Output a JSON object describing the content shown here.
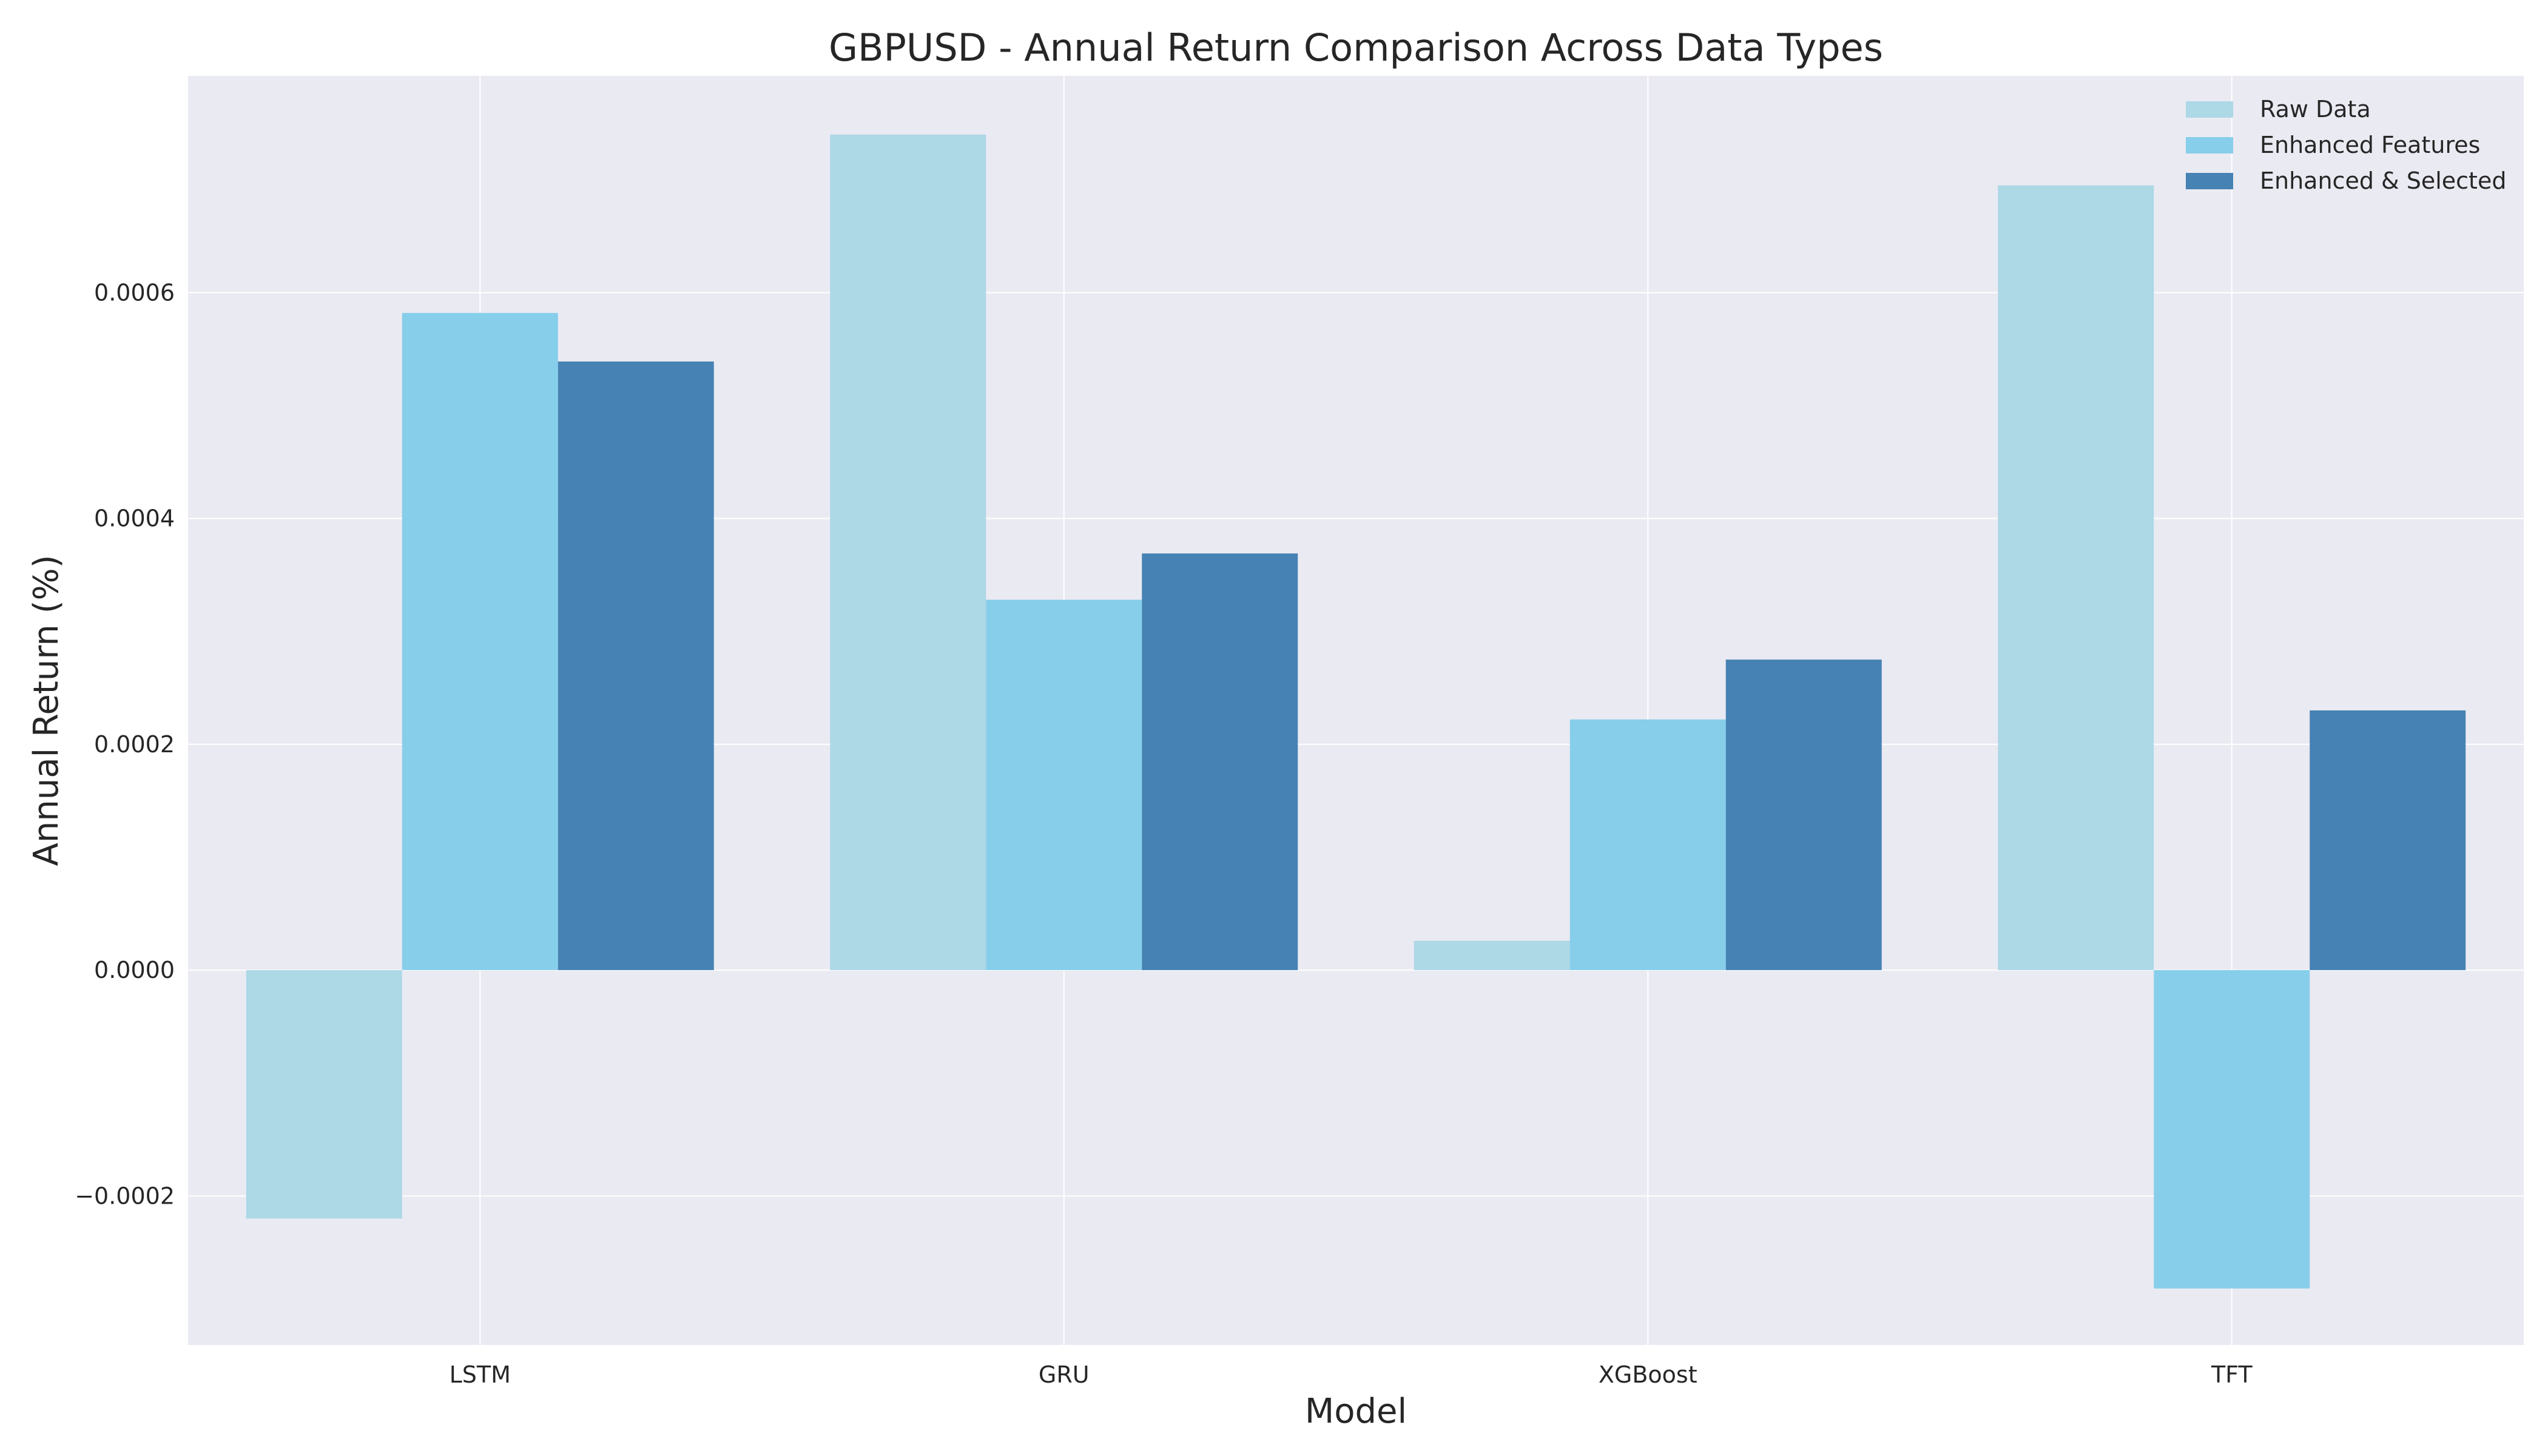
{
  "chart_data": {
    "type": "bar",
    "title": "GBPUSD - Annual Return Comparison Across Data Types",
    "xlabel": "Model",
    "ylabel": "Annual Return (%)",
    "categories": [
      "LSTM",
      "GRU",
      "XGBoost",
      "TFT"
    ],
    "series": [
      {
        "name": "Raw Data",
        "color": "#add8e6",
        "values": [
          -0.00022,
          0.00074,
          2.6e-05,
          0.000695
        ]
      },
      {
        "name": "Enhanced Features",
        "color": "#87ceeb",
        "values": [
          0.000582,
          0.000328,
          0.000222,
          -0.000282
        ]
      },
      {
        "name": "Enhanced & Selected",
        "color": "#4682b4",
        "values": [
          0.000539,
          0.000369,
          0.000275,
          0.00023
        ]
      }
    ],
    "ylim": [
      -0.000332,
      0.000792
    ],
    "yticks": [
      -0.0002,
      0.0,
      0.0002,
      0.0004,
      0.0006
    ],
    "ytick_labels": [
      "−0.0002",
      "0.0000",
      "0.0002",
      "0.0004",
      "0.0006"
    ],
    "grid": true,
    "legend_position": "top-right",
    "colors": {
      "background": "#eaeaf2",
      "grid": "#ffffff",
      "text": "#262626"
    }
  }
}
